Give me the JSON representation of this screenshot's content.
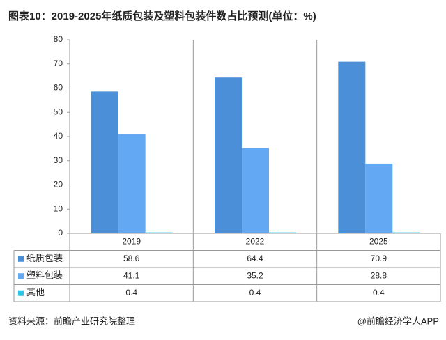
{
  "chart_data": {
    "type": "bar",
    "title": "图表10：2019-2025年纸质包装及塑料包装件数占比预测(单位：%)",
    "categories": [
      "2019",
      "2022",
      "2025"
    ],
    "series": [
      {
        "name": "纸质包装",
        "color": "#4a8fd8",
        "values": [
          58.6,
          64.4,
          70.9
        ]
      },
      {
        "name": "塑料包装",
        "color": "#62a8f2",
        "values": [
          41.1,
          35.2,
          28.8
        ]
      },
      {
        "name": "其他",
        "color": "#2cc3e5",
        "values": [
          0.4,
          0.4,
          0.4
        ]
      }
    ],
    "ylim": [
      0,
      80
    ],
    "yticks": [
      0,
      10,
      20,
      30,
      40,
      50,
      60,
      70,
      80
    ],
    "grid": false,
    "source": "资料来源：前瞻产业研究院整理",
    "credit": "@前瞻经济学人APP"
  }
}
